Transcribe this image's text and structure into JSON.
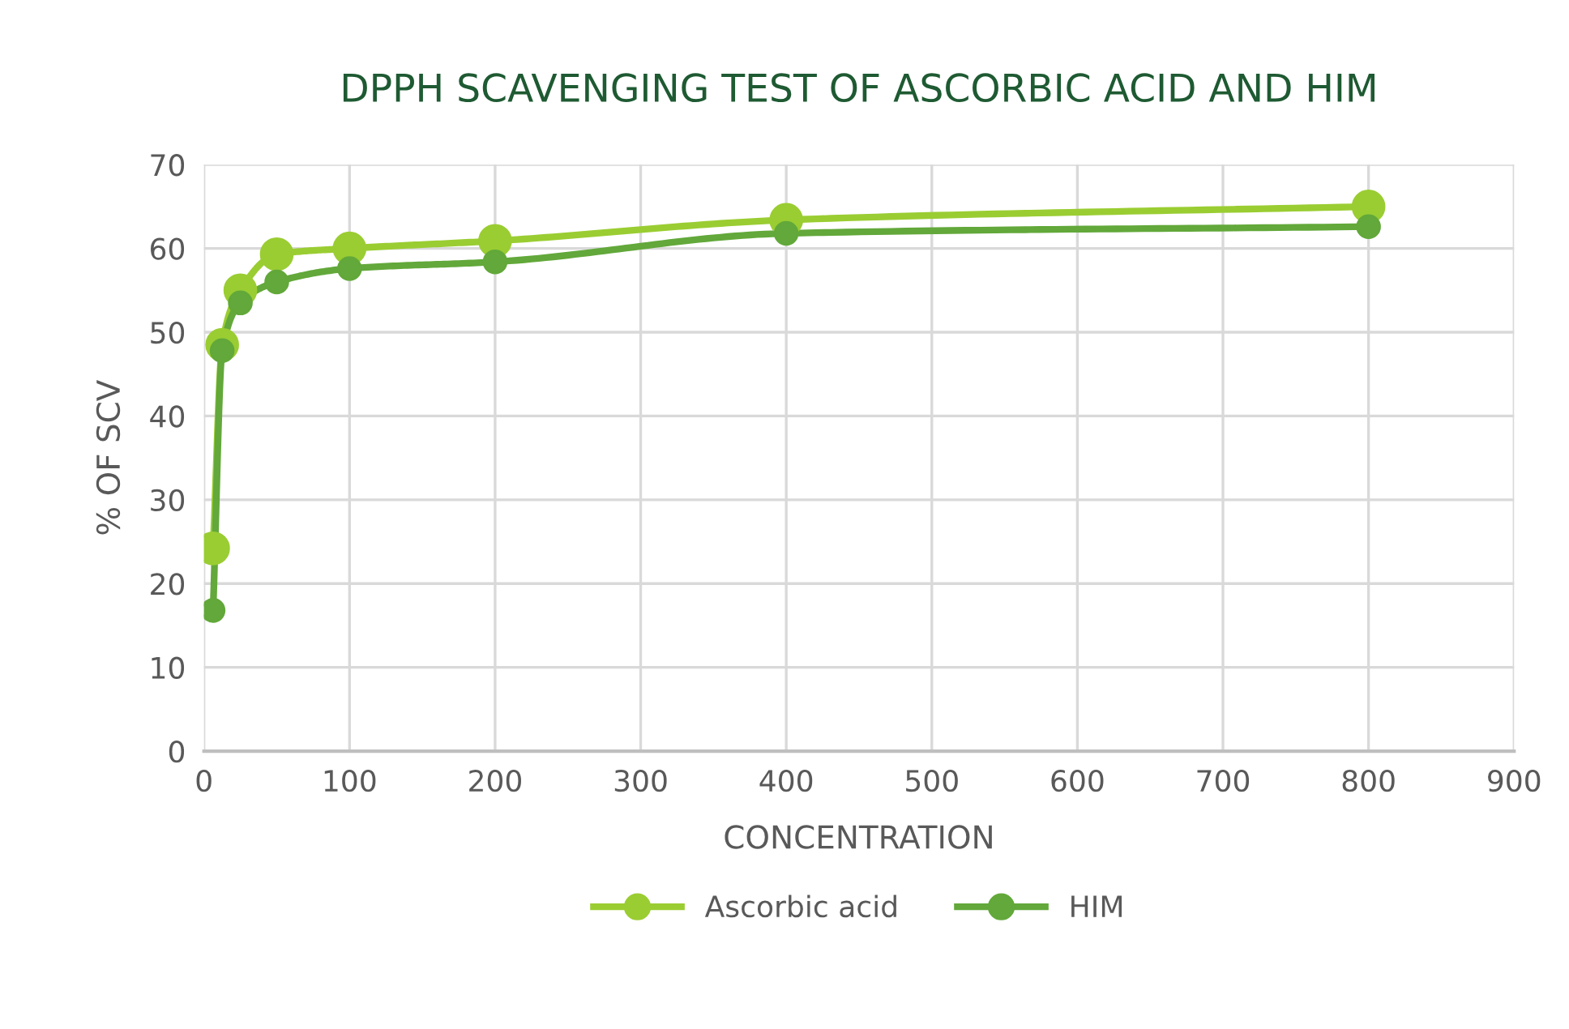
{
  "chart_data": {
    "type": "line",
    "title": "DPPH SCAVENGING TEST OF ASCORBIC ACID AND HIM",
    "xlabel": "CONCENTRATION",
    "ylabel": "% OF SCV",
    "x": [
      6.25,
      12.5,
      25,
      50,
      100,
      200,
      400,
      800
    ],
    "series": [
      {
        "name": "Ascorbic acid",
        "color": "#9acd32",
        "values": [
          24.2,
          48.5,
          55.0,
          59.3,
          60.0,
          60.9,
          63.4,
          65.0
        ]
      },
      {
        "name": "HIM",
        "color": "#62a83a",
        "values": [
          16.8,
          47.8,
          53.5,
          56.0,
          57.6,
          58.4,
          61.8,
          62.6
        ]
      }
    ],
    "xlim": [
      0,
      900
    ],
    "xticks": [
      0,
      100,
      200,
      300,
      400,
      500,
      600,
      700,
      800,
      900
    ],
    "ylim": [
      0,
      70
    ],
    "yticks": [
      0,
      10,
      20,
      30,
      40,
      50,
      60,
      70
    ],
    "grid": true,
    "legend": "bottom",
    "marker": "circle",
    "line_style": "solid"
  }
}
